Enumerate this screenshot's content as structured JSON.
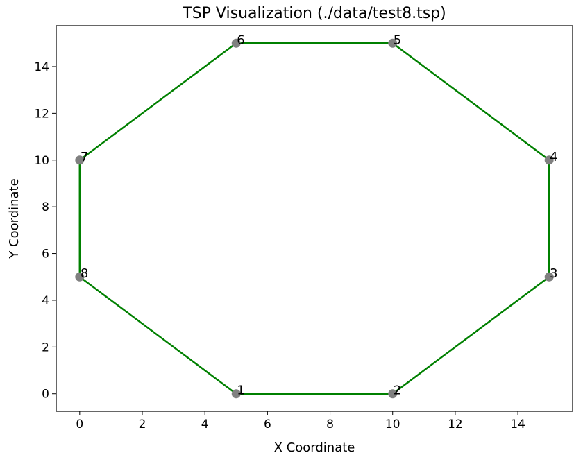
{
  "chart_data": {
    "type": "scatter",
    "title": "TSP Visualization (./data/test8.tsp)",
    "x_label": "X Coordinate",
    "y_label": "Y Coordinate",
    "x": [
      5,
      10,
      15,
      15,
      10,
      5,
      0,
      0
    ],
    "y": [
      0,
      0,
      5,
      10,
      15,
      15,
      10,
      5
    ],
    "labels": [
      "1",
      "2",
      "3",
      "4",
      "5",
      "6",
      "7",
      "8"
    ],
    "color": "#808080",
    "route": {
      "x": [
        5,
        10,
        15,
        15,
        10,
        5,
        0,
        0,
        5
      ],
      "y": [
        0,
        0,
        5,
        10,
        15,
        15,
        10,
        5,
        0
      ],
      "color": "#008000"
    },
    "xlim": [
      -0.75,
      15.75
    ],
    "ylim": [
      -0.75,
      15.75
    ],
    "xticks": [
      0,
      2,
      4,
      6,
      8,
      10,
      12,
      14
    ],
    "yticks": [
      0,
      2,
      4,
      6,
      8,
      10,
      12,
      14
    ],
    "grid": false
  }
}
